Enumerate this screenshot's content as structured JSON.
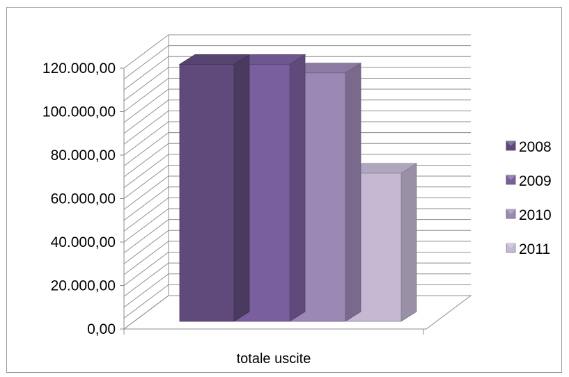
{
  "chart_data": {
    "type": "bar",
    "style": "3d-clustered-column",
    "categories": [
      "totale uscite"
    ],
    "series": [
      {
        "name": "2008",
        "values": [
          120500
        ],
        "color": "#604a7b"
      },
      {
        "name": "2009",
        "values": [
          120500
        ],
        "color": "#7a5f9e"
      },
      {
        "name": "2010",
        "values": [
          116500
        ],
        "color": "#9b88b5"
      },
      {
        "name": "2011",
        "values": [
          69500
        ],
        "color": "#c4b8d3"
      }
    ],
    "y_ticks": [
      "0,00",
      "20.000,00",
      "40.000,00",
      "60.000,00",
      "80.000,00",
      "100.000,00",
      "120.000,00"
    ],
    "ylim": [
      0,
      120000
    ],
    "grid": true,
    "legend_position": "right"
  }
}
